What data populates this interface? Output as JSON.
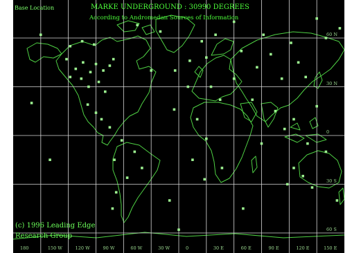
{
  "corner_label": "Base Location",
  "title": "MARKE UNDERGROUND : 30990 DEGREES",
  "subtitle": "According to Andromedan Sources of Information",
  "credit_line1": "(c) 1996 Leading Edge",
  "credit_line2": "Research Group",
  "longitude_labels": [
    "180",
    "150 W",
    "120 W",
    "90 W",
    "60 W",
    "30 W",
    "0",
    "30 E",
    "60 E",
    "90 E",
    "120 E",
    "150 E"
  ],
  "latitude_labels": [
    "60 N",
    "30 N",
    "0",
    "30 S",
    "60 S"
  ],
  "colors": {
    "background": "#000000",
    "coastline": "#4FD144",
    "grid": "#D9D9D9",
    "marker": "#9BEF8F",
    "text": "#4DFF3A"
  },
  "markers": [
    {
      "lon": -122,
      "lat": 47
    },
    {
      "lon": -118,
      "lat": 36
    },
    {
      "lon": -112,
      "lat": 41
    },
    {
      "lon": -106,
      "lat": 35
    },
    {
      "lon": -104,
      "lat": 45
    },
    {
      "lon": -98,
      "lat": 30
    },
    {
      "lon": -96,
      "lat": 39
    },
    {
      "lon": -90,
      "lat": 44
    },
    {
      "lon": -87,
      "lat": 33
    },
    {
      "lon": -82,
      "lat": 40
    },
    {
      "lon": -80,
      "lat": 27
    },
    {
      "lon": -75,
      "lat": 43
    },
    {
      "lon": -71,
      "lat": 47
    },
    {
      "lon": -118,
      "lat": 55
    },
    {
      "lon": -105,
      "lat": 58
    },
    {
      "lon": -92,
      "lat": 56
    },
    {
      "lon": -150,
      "lat": 62
    },
    {
      "lon": -99,
      "lat": 19
    },
    {
      "lon": -90,
      "lat": 14
    },
    {
      "lon": -84,
      "lat": 10
    },
    {
      "lon": -75,
      "lat": 5
    },
    {
      "lon": -62,
      "lat": -3
    },
    {
      "lon": -48,
      "lat": -10
    },
    {
      "lon": -70,
      "lat": -15
    },
    {
      "lon": -56,
      "lat": -26
    },
    {
      "lon": -68,
      "lat": -35
    },
    {
      "lon": -40,
      "lat": -20
    },
    {
      "lon": -72,
      "lat": -45
    },
    {
      "lon": -20,
      "lat": 64
    },
    {
      "lon": -45,
      "lat": 68
    },
    {
      "lon": -4,
      "lat": 40
    },
    {
      "lon": 12,
      "lat": 46
    },
    {
      "lon": 25,
      "lat": 58
    },
    {
      "lon": 30,
      "lat": 48
    },
    {
      "lon": 40,
      "lat": 62
    },
    {
      "lon": 35,
      "lat": 30
    },
    {
      "lon": 10,
      "lat": 30
    },
    {
      "lon": -5,
      "lat": 16
    },
    {
      "lon": 20,
      "lat": 10
    },
    {
      "lon": 30,
      "lat": -2
    },
    {
      "lon": 15,
      "lat": -15
    },
    {
      "lon": 28,
      "lat": -27
    },
    {
      "lon": 47,
      "lat": -20
    },
    {
      "lon": 45,
      "lat": 22
    },
    {
      "lon": 60,
      "lat": 35
    },
    {
      "lon": 68,
      "lat": 52
    },
    {
      "lon": 80,
      "lat": 22
    },
    {
      "lon": 85,
      "lat": 42
    },
    {
      "lon": 92,
      "lat": 62
    },
    {
      "lon": 100,
      "lat": 50
    },
    {
      "lon": 105,
      "lat": 15
    },
    {
      "lon": 112,
      "lat": 35
    },
    {
      "lon": 115,
      "lat": 4
    },
    {
      "lon": 122,
      "lat": 57
    },
    {
      "lon": 130,
      "lat": 45
    },
    {
      "lon": 138,
      "lat": 36
    },
    {
      "lon": 125,
      "lat": 10
    },
    {
      "lon": 140,
      "lat": -5
    },
    {
      "lon": 125,
      "lat": -20
    },
    {
      "lon": 135,
      "lat": -25
    },
    {
      "lon": 145,
      "lat": -32
    },
    {
      "lon": 118,
      "lat": -30
    },
    {
      "lon": 172,
      "lat": -40
    },
    {
      "lon": 160,
      "lat": -10
    },
    {
      "lon": 150,
      "lat": 18
    },
    {
      "lon": 160,
      "lat": 60
    },
    {
      "lon": 175,
      "lat": 66
    },
    {
      "lon": -160,
      "lat": 20
    },
    {
      "lon": -140,
      "lat": -15
    },
    {
      "lon": -10,
      "lat": -40
    },
    {
      "lon": 70,
      "lat": -45
    },
    {
      "lon": 90,
      "lat": -5
    },
    {
      "lon": -30,
      "lat": 40
    },
    {
      "lon": 150,
      "lat": 72
    },
    {
      "lon": 60,
      "lat": 70
    },
    {
      "lon": 0,
      "lat": -58
    }
  ]
}
